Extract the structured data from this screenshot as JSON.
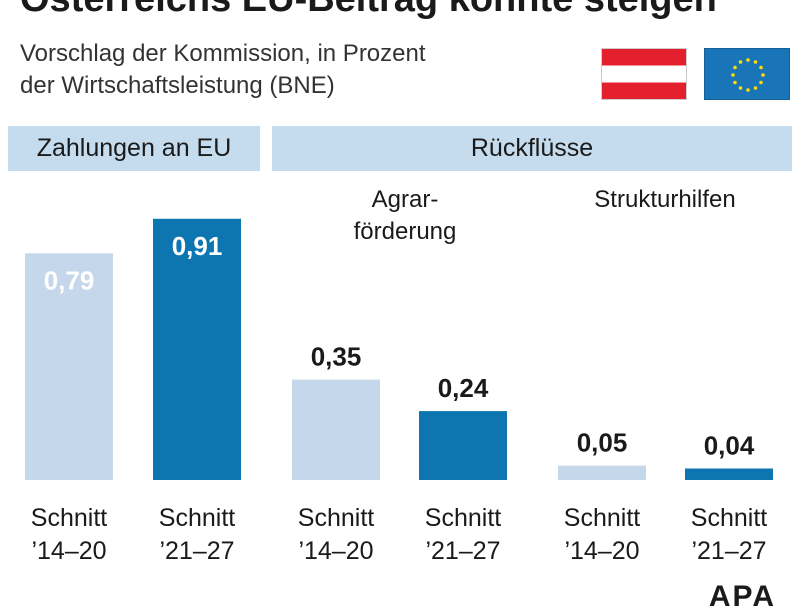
{
  "title": "Österreichs EU-Beitrag könnte steigen",
  "subtitle_line1": "Vorschlag der Kommission, in Prozent",
  "subtitle_line2": "der Wirtschaftsleistung (BNE)",
  "band_payments": "Zahlungen an EU",
  "band_returns": "Rückflüsse",
  "group_agrar_line1": "Agrar-",
  "group_agrar_line2": "förderung",
  "group_struktur": "Strukturhilfen",
  "logo": "APA",
  "icons": {
    "flag_austria": "austria-flag-icon",
    "flag_eu": "eu-flag-icon"
  },
  "colors": {
    "light": "#c5d7ea",
    "dark": "#0d76b0",
    "band": "#c5dcee"
  },
  "chart_data": {
    "type": "bar",
    "categories": [
      [
        "Schnitt",
        "’14–20"
      ],
      [
        "Schnitt",
        "’21–27"
      ],
      [
        "Schnitt",
        "’14–20"
      ],
      [
        "Schnitt",
        "’21–27"
      ],
      [
        "Schnitt",
        "’14–20"
      ],
      [
        "Schnitt",
        "’21–27"
      ]
    ],
    "groups": [
      "Zahlungen an EU",
      "Agrarförderung",
      "Strukturhilfen"
    ],
    "values": [
      0.79,
      0.91,
      0.35,
      0.24,
      0.05,
      0.04
    ],
    "value_labels": [
      "0,79",
      "0,91",
      "0,35",
      "0,24",
      "0,05",
      "0,04"
    ],
    "unit": "Prozent des BNE",
    "ylim": [
      0,
      1.0
    ],
    "grid": false,
    "legend": "none"
  }
}
